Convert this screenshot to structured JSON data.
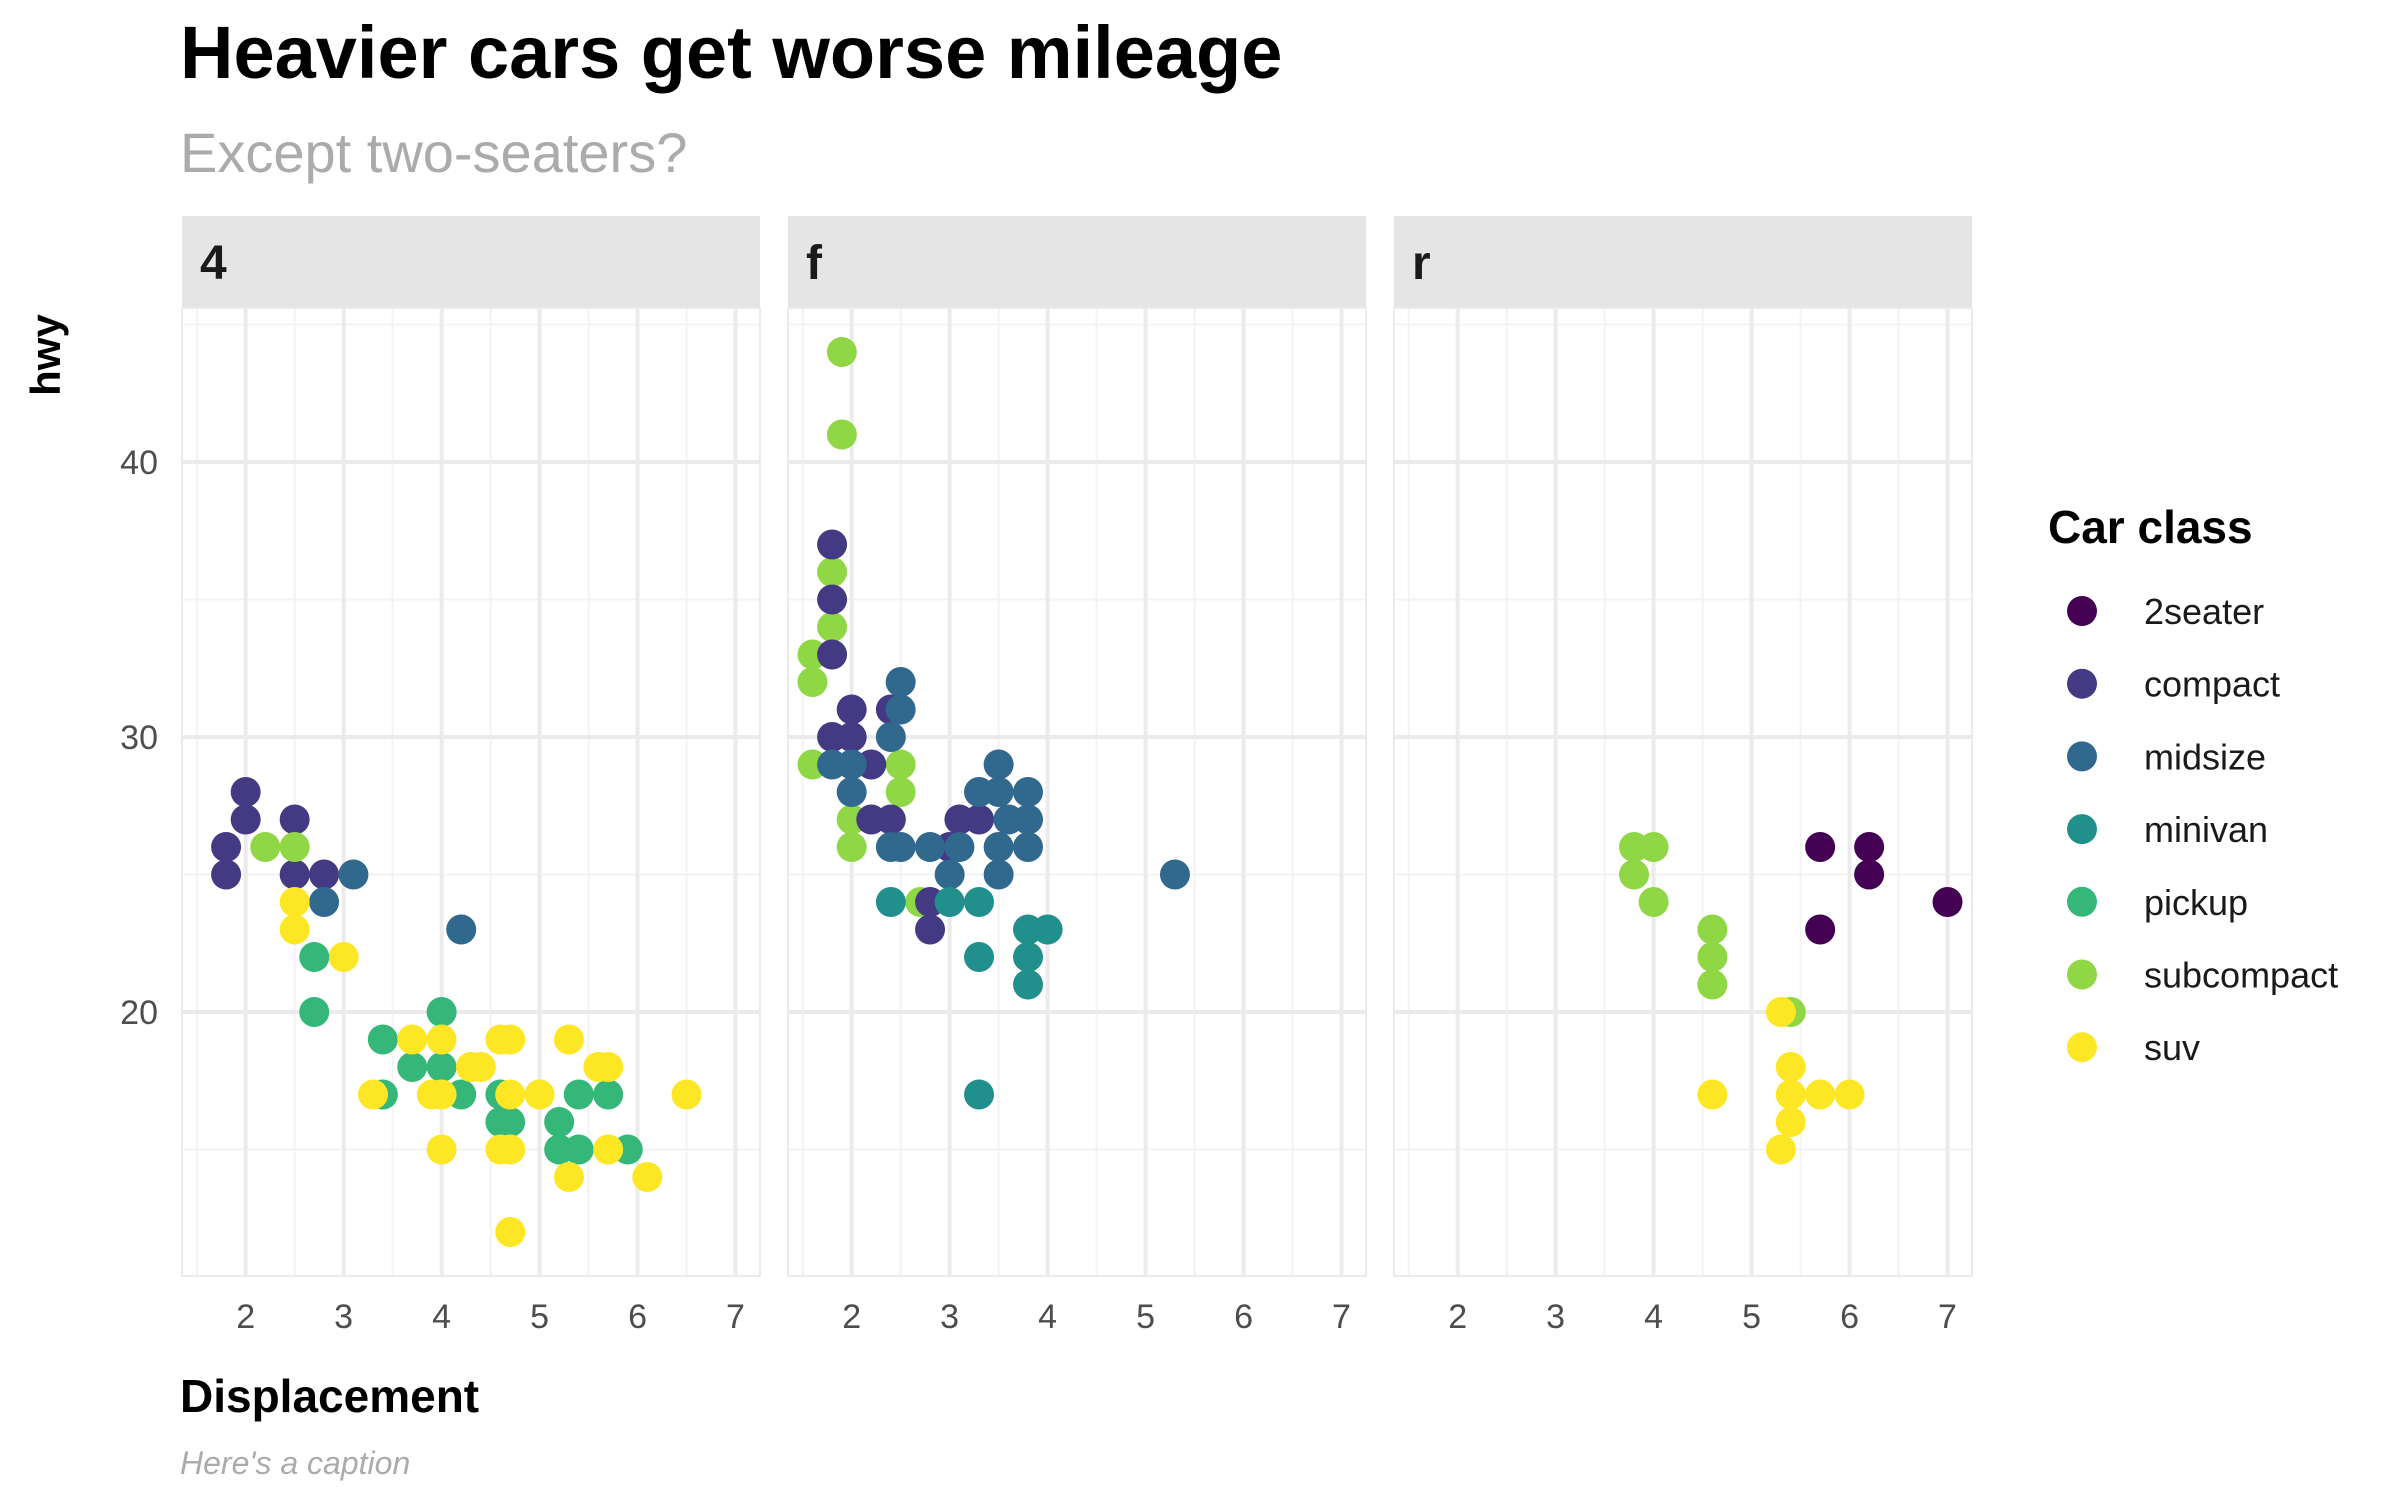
{
  "chart_data": {
    "type": "scatter",
    "title": "Heavier cars get worse mileage",
    "subtitle": "Except two-seaters?",
    "xlabel": "Displacement",
    "ylabel": "hwy",
    "caption": "Here's a caption",
    "facet_variable": "drv",
    "facets": [
      "4",
      "f",
      "r"
    ],
    "xlim": [
      1.35,
      7.25
    ],
    "ylim": [
      10.4,
      45.6
    ],
    "x_ticks": [
      2,
      3,
      4,
      5,
      6,
      7
    ],
    "y_ticks": [
      20,
      30,
      40
    ],
    "grid": true,
    "legend": {
      "title": "Car class",
      "position": "right"
    },
    "classes": [
      {
        "name": "2seater",
        "color": "#440154"
      },
      {
        "name": "compact",
        "color": "#443A83"
      },
      {
        "name": "midsize",
        "color": "#31688E"
      },
      {
        "name": "minivan",
        "color": "#21908C"
      },
      {
        "name": "pickup",
        "color": "#35B779"
      },
      {
        "name": "subcompact",
        "color": "#8FD744"
      },
      {
        "name": "suv",
        "color": "#FDE725"
      }
    ],
    "points": {
      "4": [
        [
          1.8,
          26,
          "compact"
        ],
        [
          1.8,
          25,
          "compact"
        ],
        [
          2.0,
          28,
          "compact"
        ],
        [
          2.0,
          27,
          "compact"
        ],
        [
          2.5,
          27,
          "compact"
        ],
        [
          2.5,
          25,
          "compact"
        ],
        [
          2.8,
          25,
          "compact"
        ],
        [
          2.8,
          24,
          "midsize"
        ],
        [
          3.1,
          25,
          "midsize"
        ],
        [
          4.2,
          23,
          "midsize"
        ],
        [
          2.2,
          26,
          "subcompact"
        ],
        [
          2.5,
          26,
          "subcompact"
        ],
        [
          2.5,
          24,
          "suv"
        ],
        [
          2.5,
          23,
          "suv"
        ],
        [
          3.0,
          22,
          "suv"
        ],
        [
          2.7,
          22,
          "pickup"
        ],
        [
          2.7,
          20,
          "pickup"
        ],
        [
          3.4,
          19,
          "pickup"
        ],
        [
          3.4,
          17,
          "pickup"
        ],
        [
          3.7,
          18,
          "pickup"
        ],
        [
          4.0,
          20,
          "pickup"
        ],
        [
          4.0,
          18,
          "pickup"
        ],
        [
          4.2,
          17,
          "pickup"
        ],
        [
          4.6,
          17,
          "pickup"
        ],
        [
          4.7,
          16,
          "pickup"
        ],
        [
          4.6,
          16,
          "pickup"
        ],
        [
          5.2,
          16,
          "pickup"
        ],
        [
          5.2,
          15,
          "pickup"
        ],
        [
          5.4,
          17,
          "pickup"
        ],
        [
          5.4,
          15,
          "pickup"
        ],
        [
          5.7,
          17,
          "pickup"
        ],
        [
          5.9,
          15,
          "pickup"
        ],
        [
          3.3,
          17,
          "suv"
        ],
        [
          3.7,
          19,
          "suv"
        ],
        [
          3.9,
          17,
          "suv"
        ],
        [
          4.0,
          19,
          "suv"
        ],
        [
          4.0,
          17,
          "suv"
        ],
        [
          4.0,
          15,
          "suv"
        ],
        [
          4.3,
          18,
          "suv"
        ],
        [
          4.4,
          18,
          "suv"
        ],
        [
          4.6,
          19,
          "suv"
        ],
        [
          4.7,
          19,
          "suv"
        ],
        [
          4.6,
          15,
          "suv"
        ],
        [
          4.7,
          15,
          "suv"
        ],
        [
          4.7,
          17,
          "suv"
        ],
        [
          4.7,
          12,
          "suv"
        ],
        [
          5.0,
          17,
          "suv"
        ],
        [
          5.3,
          19,
          "suv"
        ],
        [
          5.3,
          14,
          "suv"
        ],
        [
          5.6,
          18,
          "suv"
        ],
        [
          5.7,
          18,
          "suv"
        ],
        [
          5.7,
          15,
          "suv"
        ],
        [
          6.1,
          14,
          "suv"
        ],
        [
          6.5,
          17,
          "suv"
        ]
      ],
      "f": [
        [
          1.9,
          44,
          "subcompact"
        ],
        [
          1.9,
          41,
          "subcompact"
        ],
        [
          1.8,
          36,
          "subcompact"
        ],
        [
          1.8,
          34,
          "subcompact"
        ],
        [
          1.6,
          33,
          "subcompact"
        ],
        [
          1.6,
          32,
          "subcompact"
        ],
        [
          1.6,
          29,
          "subcompact"
        ],
        [
          2.0,
          27,
          "subcompact"
        ],
        [
          2.0,
          26,
          "subcompact"
        ],
        [
          2.5,
          29,
          "subcompact"
        ],
        [
          2.5,
          28,
          "subcompact"
        ],
        [
          2.7,
          24,
          "subcompact"
        ],
        [
          1.8,
          37,
          "compact"
        ],
        [
          1.8,
          35,
          "compact"
        ],
        [
          1.8,
          33,
          "compact"
        ],
        [
          1.8,
          30,
          "compact"
        ],
        [
          2.0,
          31,
          "compact"
        ],
        [
          2.0,
          30,
          "compact"
        ],
        [
          2.2,
          29,
          "compact"
        ],
        [
          2.2,
          27,
          "compact"
        ],
        [
          2.4,
          31,
          "compact"
        ],
        [
          2.4,
          27,
          "compact"
        ],
        [
          2.8,
          24,
          "compact"
        ],
        [
          2.8,
          23,
          "compact"
        ],
        [
          3.1,
          27,
          "compact"
        ],
        [
          3.3,
          27,
          "compact"
        ],
        [
          3.0,
          26,
          "compact"
        ],
        [
          1.8,
          29,
          "midsize"
        ],
        [
          2.0,
          29,
          "midsize"
        ],
        [
          2.0,
          28,
          "midsize"
        ],
        [
          2.4,
          30,
          "midsize"
        ],
        [
          2.5,
          32,
          "midsize"
        ],
        [
          2.5,
          31,
          "midsize"
        ],
        [
          2.4,
          26,
          "midsize"
        ],
        [
          2.5,
          26,
          "midsize"
        ],
        [
          2.8,
          26,
          "midsize"
        ],
        [
          3.0,
          25,
          "midsize"
        ],
        [
          3.1,
          26,
          "midsize"
        ],
        [
          3.3,
          28,
          "midsize"
        ],
        [
          3.5,
          29,
          "midsize"
        ],
        [
          3.5,
          28,
          "midsize"
        ],
        [
          3.5,
          26,
          "midsize"
        ],
        [
          3.5,
          25,
          "midsize"
        ],
        [
          3.8,
          28,
          "midsize"
        ],
        [
          3.8,
          27,
          "midsize"
        ],
        [
          3.8,
          26,
          "midsize"
        ],
        [
          3.6,
          27,
          "midsize"
        ],
        [
          5.3,
          25,
          "midsize"
        ],
        [
          2.4,
          24,
          "minivan"
        ],
        [
          3.0,
          24,
          "minivan"
        ],
        [
          3.3,
          24,
          "minivan"
        ],
        [
          3.3,
          22,
          "minivan"
        ],
        [
          3.3,
          17,
          "minivan"
        ],
        [
          3.8,
          23,
          "minivan"
        ],
        [
          3.8,
          22,
          "minivan"
        ],
        [
          3.8,
          21,
          "minivan"
        ],
        [
          4.0,
          23,
          "minivan"
        ]
      ],
      "r": [
        [
          5.7,
          26,
          "2seater"
        ],
        [
          5.7,
          23,
          "2seater"
        ],
        [
          6.2,
          26,
          "2seater"
        ],
        [
          6.2,
          25,
          "2seater"
        ],
        [
          7.0,
          24,
          "2seater"
        ],
        [
          3.8,
          26,
          "subcompact"
        ],
        [
          3.8,
          25,
          "subcompact"
        ],
        [
          4.0,
          26,
          "subcompact"
        ],
        [
          4.0,
          24,
          "subcompact"
        ],
        [
          4.6,
          23,
          "subcompact"
        ],
        [
          4.6,
          22,
          "subcompact"
        ],
        [
          4.6,
          21,
          "subcompact"
        ],
        [
          5.4,
          20,
          "subcompact"
        ],
        [
          5.3,
          20,
          "suv"
        ],
        [
          4.6,
          17,
          "suv"
        ],
        [
          5.4,
          18,
          "suv"
        ],
        [
          5.4,
          17,
          "suv"
        ],
        [
          5.4,
          16,
          "suv"
        ],
        [
          5.3,
          15,
          "suv"
        ],
        [
          5.7,
          17,
          "suv"
        ],
        [
          6.0,
          17,
          "suv"
        ]
      ]
    }
  }
}
